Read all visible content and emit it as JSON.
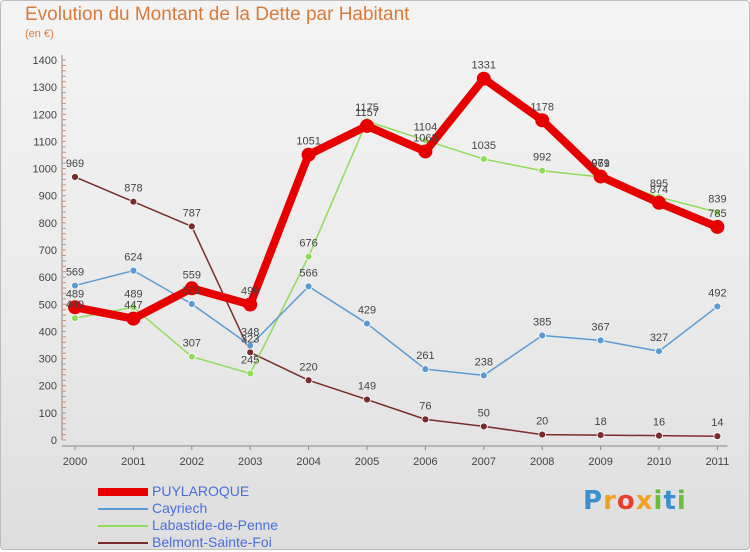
{
  "title": "Evolution du Montant de la Dette par Habitant",
  "subtitle": "(en €)",
  "logo": [
    "P",
    "r",
    "o",
    "x",
    "i",
    "t",
    "i"
  ],
  "chart_data": {
    "type": "line",
    "title": "Evolution du Montant de la Dette par Habitant",
    "subtitle": "(en €)",
    "x": [
      "2000",
      "2001",
      "2002",
      "2003",
      "2004",
      "2005",
      "2006",
      "2007",
      "2008",
      "2009",
      "2010",
      "2011"
    ],
    "yticks": [
      "0",
      "100",
      "200",
      "300",
      "400",
      "500",
      "600",
      "700",
      "800",
      "900",
      "1000",
      "1100",
      "1200",
      "1300",
      "1400"
    ],
    "ylim": [
      0,
      1400
    ],
    "grid": false,
    "legend_position": "bottom-left",
    "series": [
      {
        "name": "PUYLAROQUE",
        "color": "#e60000",
        "values": [
          489,
          447,
          559,
          499,
          1051,
          1157,
          1063,
          1331,
          1178,
          971,
          874,
          785
        ]
      },
      {
        "name": "Cayriech",
        "color": "#5b9bd5",
        "values": [
          569,
          624,
          501,
          348,
          566,
          429,
          261,
          238,
          385,
          367,
          327,
          492
        ]
      },
      {
        "name": "Labastide-de-Penne",
        "color": "#8fdc5a",
        "values": [
          449,
          489,
          307,
          245,
          676,
          1175,
          1104,
          1035,
          992,
          969,
          895,
          839
        ]
      },
      {
        "name": "Belmont-Sainte-Foi",
        "color": "#7a2b2b",
        "values": [
          969,
          878,
          787,
          323,
          220,
          149,
          76,
          50,
          20,
          18,
          16,
          14
        ]
      }
    ]
  }
}
